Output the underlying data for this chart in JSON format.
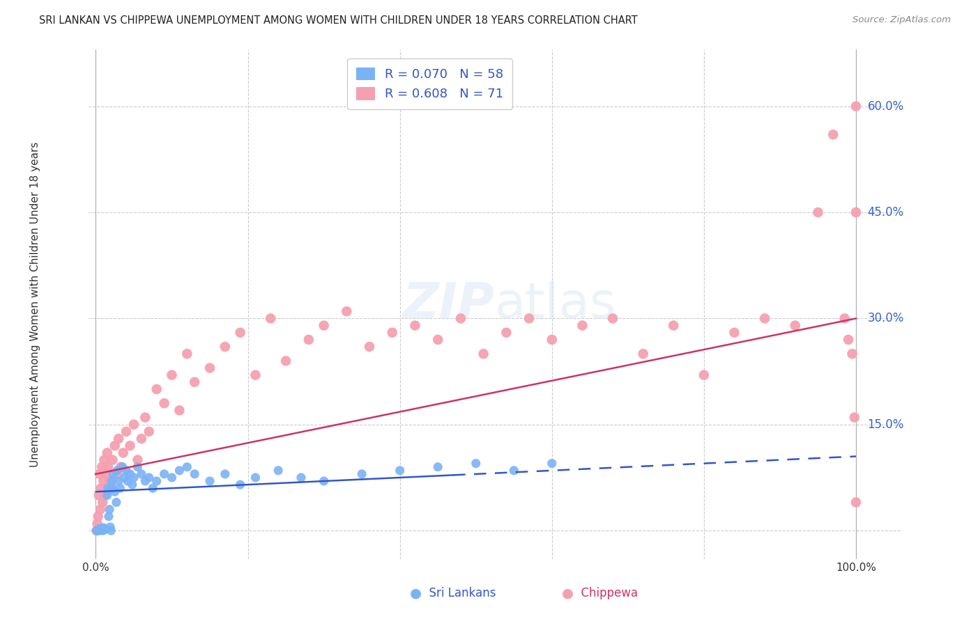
{
  "title": "SRI LANKAN VS CHIPPEWA UNEMPLOYMENT AMONG WOMEN WITH CHILDREN UNDER 18 YEARS CORRELATION CHART",
  "source": "Source: ZipAtlas.com",
  "ylabel": "Unemployment Among Women with Children Under 18 years",
  "bg_color": "#ffffff",
  "grid_color": "#cccccc",
  "sri_lankan_color": "#7ab3f5",
  "chippewa_color": "#f5a0b0",
  "sri_lankan_line_color": "#3355cc",
  "chippewa_line_color": "#cc3366",
  "legend_label_1": "R = 0.070   N = 58",
  "legend_label_2": "R = 0.608   N = 71",
  "ylim": [
    -0.04,
    0.68
  ],
  "xlim": [
    -0.01,
    1.06
  ],
  "yticks": [
    0.0,
    0.15,
    0.3,
    0.45,
    0.6
  ],
  "ytick_labels": [
    "",
    "15.0%",
    "30.0%",
    "45.0%",
    "60.0%"
  ],
  "sri_x": [
    0.001,
    0.002,
    0.003,
    0.004,
    0.005,
    0.006,
    0.007,
    0.008,
    0.009,
    0.01,
    0.011,
    0.012,
    0.013,
    0.015,
    0.016,
    0.017,
    0.018,
    0.019,
    0.02,
    0.021,
    0.022,
    0.023,
    0.025,
    0.027,
    0.028,
    0.03,
    0.032,
    0.035,
    0.038,
    0.04,
    0.042,
    0.045,
    0.048,
    0.05,
    0.055,
    0.06,
    0.065,
    0.07,
    0.075,
    0.08,
    0.09,
    0.1,
    0.11,
    0.12,
    0.13,
    0.15,
    0.17,
    0.19,
    0.21,
    0.24,
    0.27,
    0.3,
    0.35,
    0.4,
    0.45,
    0.5,
    0.55,
    0.6
  ],
  "sri_y": [
    0.0,
    0.0,
    0.001,
    0.002,
    0.0,
    0.003,
    0.001,
    0.002,
    0.0,
    0.004,
    0.001,
    0.003,
    0.002,
    0.05,
    0.06,
    0.02,
    0.03,
    0.005,
    0.0,
    0.07,
    0.06,
    0.08,
    0.055,
    0.04,
    0.085,
    0.07,
    0.06,
    0.09,
    0.075,
    0.085,
    0.07,
    0.08,
    0.065,
    0.075,
    0.09,
    0.08,
    0.07,
    0.075,
    0.06,
    0.07,
    0.08,
    0.075,
    0.085,
    0.09,
    0.08,
    0.07,
    0.08,
    0.065,
    0.075,
    0.085,
    0.075,
    0.07,
    0.08,
    0.085,
    0.09,
    0.095,
    0.085,
    0.095
  ],
  "chip_x": [
    0.001,
    0.002,
    0.003,
    0.004,
    0.005,
    0.006,
    0.007,
    0.008,
    0.009,
    0.01,
    0.011,
    0.012,
    0.013,
    0.015,
    0.016,
    0.018,
    0.02,
    0.022,
    0.025,
    0.028,
    0.03,
    0.033,
    0.036,
    0.04,
    0.045,
    0.05,
    0.055,
    0.06,
    0.065,
    0.07,
    0.08,
    0.09,
    0.1,
    0.11,
    0.12,
    0.13,
    0.15,
    0.17,
    0.19,
    0.21,
    0.23,
    0.25,
    0.28,
    0.3,
    0.33,
    0.36,
    0.39,
    0.42,
    0.45,
    0.48,
    0.51,
    0.54,
    0.57,
    0.6,
    0.64,
    0.68,
    0.72,
    0.76,
    0.8,
    0.84,
    0.88,
    0.92,
    0.95,
    0.97,
    0.985,
    0.99,
    0.995,
    0.998,
    1.0,
    1.0,
    1.0
  ],
  "chip_y": [
    0.0,
    0.01,
    0.02,
    0.05,
    0.08,
    0.03,
    0.06,
    0.09,
    0.04,
    0.07,
    0.1,
    0.05,
    0.08,
    0.11,
    0.09,
    0.07,
    0.06,
    0.1,
    0.12,
    0.08,
    0.13,
    0.09,
    0.11,
    0.14,
    0.12,
    0.15,
    0.1,
    0.13,
    0.16,
    0.14,
    0.2,
    0.18,
    0.22,
    0.17,
    0.25,
    0.21,
    0.23,
    0.26,
    0.28,
    0.22,
    0.3,
    0.24,
    0.27,
    0.29,
    0.31,
    0.26,
    0.28,
    0.29,
    0.27,
    0.3,
    0.25,
    0.28,
    0.3,
    0.27,
    0.29,
    0.3,
    0.25,
    0.29,
    0.22,
    0.28,
    0.3,
    0.29,
    0.45,
    0.56,
    0.3,
    0.27,
    0.25,
    0.16,
    0.6,
    0.45,
    0.04
  ],
  "sri_line_solid_end": 0.47,
  "sri_line_intercept": 0.055,
  "sri_line_slope": 0.05,
  "chip_line_intercept": 0.08,
  "chip_line_slope": 0.22
}
